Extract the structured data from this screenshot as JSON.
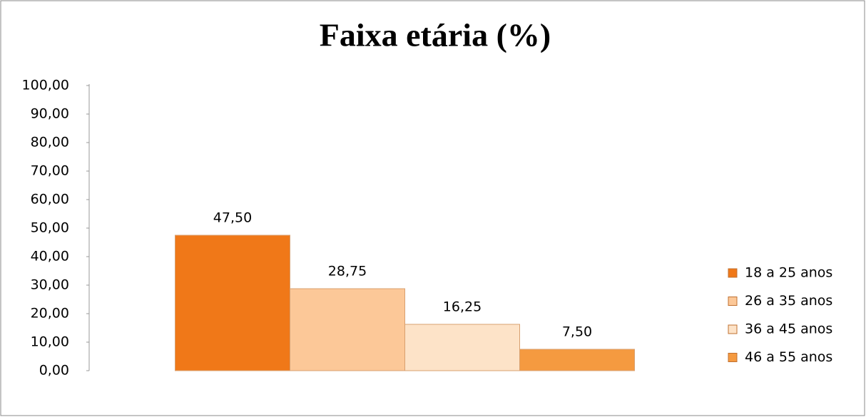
{
  "chart_data": {
    "type": "bar",
    "title": "Faixa etária (%)",
    "categories": [
      null
    ],
    "series": [
      {
        "name": "18 a 25 anos",
        "color": "#f07818",
        "values": [
          47.5
        ],
        "value_labels": [
          "47,50"
        ]
      },
      {
        "name": "26 a 35 anos",
        "color": "#fcc898",
        "values": [
          28.75
        ],
        "value_labels": [
          "28,75"
        ]
      },
      {
        "name": "36 a 45 anos",
        "color": "#fde3c8",
        "values": [
          16.25
        ],
        "value_labels": [
          "16,25"
        ]
      },
      {
        "name": "46 a 55 anos",
        "color": "#f59a40",
        "values": [
          7.5
        ],
        "value_labels": [
          "7,50"
        ]
      }
    ],
    "ylim": [
      0,
      100
    ],
    "yticks": [
      {
        "value": 0,
        "label": "0,00"
      },
      {
        "value": 10,
        "label": "10,00"
      },
      {
        "value": 20,
        "label": "20,00"
      },
      {
        "value": 30,
        "label": "30,00"
      },
      {
        "value": 40,
        "label": "40,00"
      },
      {
        "value": 50,
        "label": "50,00"
      },
      {
        "value": 60,
        "label": "60,00"
      },
      {
        "value": 70,
        "label": "70,00"
      },
      {
        "value": 80,
        "label": "80,00"
      },
      {
        "value": 90,
        "label": "90,00"
      },
      {
        "value": 100,
        "label": "100,00"
      }
    ],
    "grid": false,
    "legend": "right"
  }
}
